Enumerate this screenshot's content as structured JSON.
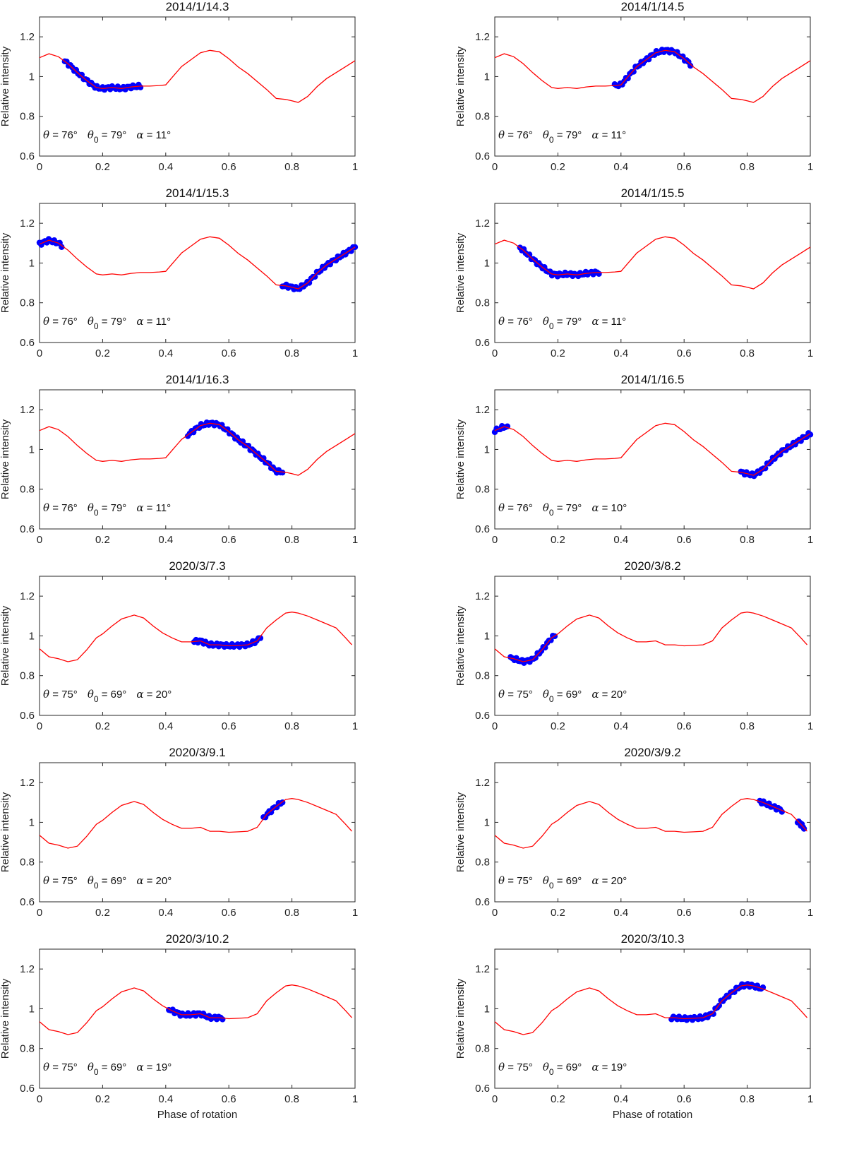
{
  "figure": {
    "xlabel": "Phase of rotation",
    "ylabel": "Relative intensity",
    "model_color": "#ff0000",
    "obs_color": "#0000ff"
  },
  "chart_data": [
    {
      "type": "line",
      "title": "2014/1/14.3",
      "xlim": [
        0,
        1
      ],
      "ylim": [
        0.6,
        1.3
      ],
      "xticks": [
        "0",
        "0.2",
        "0.4",
        "0.6",
        "0.8",
        "1"
      ],
      "yticks": [
        "0.6",
        "0.8",
        "1",
        "1.2"
      ],
      "model": "A",
      "obs_ranges": [
        [
          0.08,
          0.32
        ]
      ],
      "annotation": {
        "theta": "76",
        "theta0": "79",
        "alpha": "11"
      }
    },
    {
      "type": "line",
      "title": "2014/1/14.5",
      "xlim": [
        0,
        1
      ],
      "ylim": [
        0.6,
        1.3
      ],
      "xticks": [
        "0",
        "0.2",
        "0.4",
        "0.6",
        "0.8",
        "1"
      ],
      "yticks": [
        "0.6",
        "0.8",
        "1",
        "1.2"
      ],
      "model": "A",
      "obs_ranges": [
        [
          0.38,
          0.62
        ]
      ],
      "annotation": {
        "theta": "76",
        "theta0": "79",
        "alpha": "11"
      }
    },
    {
      "type": "line",
      "title": "2014/1/15.3",
      "xlim": [
        0,
        1
      ],
      "ylim": [
        0.6,
        1.3
      ],
      "xticks": [
        "0",
        "0.2",
        "0.4",
        "0.6",
        "0.8",
        "1"
      ],
      "yticks": [
        "0.6",
        "0.8",
        "1",
        "1.2"
      ],
      "model": "A",
      "obs_ranges": [
        [
          0.0,
          0.07
        ],
        [
          0.77,
          1.0
        ]
      ],
      "annotation": {
        "theta": "76",
        "theta0": "79",
        "alpha": "11"
      }
    },
    {
      "type": "line",
      "title": "2014/1/15.5",
      "xlim": [
        0,
        1
      ],
      "ylim": [
        0.6,
        1.3
      ],
      "xticks": [
        "0",
        "0.2",
        "0.4",
        "0.6",
        "0.8",
        "1"
      ],
      "yticks": [
        "0.6",
        "0.8",
        "1",
        "1.2"
      ],
      "model": "A",
      "obs_ranges": [
        [
          0.08,
          0.33
        ]
      ],
      "annotation": {
        "theta": "76",
        "theta0": "79",
        "alpha": "11"
      }
    },
    {
      "type": "line",
      "title": "2014/1/16.3",
      "xlim": [
        0,
        1
      ],
      "ylim": [
        0.6,
        1.3
      ],
      "xticks": [
        "0",
        "0.2",
        "0.4",
        "0.6",
        "0.8",
        "1"
      ],
      "yticks": [
        "0.6",
        "0.8",
        "1",
        "1.2"
      ],
      "model": "A",
      "obs_ranges": [
        [
          0.47,
          0.77
        ]
      ],
      "annotation": {
        "theta": "76",
        "theta0": "79",
        "alpha": "11"
      }
    },
    {
      "type": "line",
      "title": "2014/1/16.5",
      "xlim": [
        0,
        1
      ],
      "ylim": [
        0.6,
        1.3
      ],
      "xticks": [
        "0",
        "0.2",
        "0.4",
        "0.6",
        "0.8",
        "1"
      ],
      "yticks": [
        "0.6",
        "0.8",
        "1",
        "1.2"
      ],
      "model": "A",
      "obs_ranges": [
        [
          0.0,
          0.04
        ],
        [
          0.78,
          1.0
        ]
      ],
      "annotation": {
        "theta": "76",
        "theta0": "79",
        "alpha": "10"
      }
    },
    {
      "type": "line",
      "title": "2020/3/7.3",
      "xlim": [
        0,
        1
      ],
      "ylim": [
        0.6,
        1.3
      ],
      "xticks": [
        "0",
        "0.2",
        "0.4",
        "0.6",
        "0.8",
        "1"
      ],
      "yticks": [
        "0.6",
        "0.8",
        "1",
        "1.2"
      ],
      "model": "B",
      "obs_ranges": [
        [
          0.49,
          0.7
        ]
      ],
      "annotation": {
        "theta": "75",
        "theta0": "69",
        "alpha": "20"
      }
    },
    {
      "type": "line",
      "title": "2020/3/8.2",
      "xlim": [
        0,
        1
      ],
      "ylim": [
        0.6,
        1.3
      ],
      "xticks": [
        "0",
        "0.2",
        "0.4",
        "0.6",
        "0.8",
        "1"
      ],
      "yticks": [
        "0.6",
        "0.8",
        "1",
        "1.2"
      ],
      "model": "B",
      "obs_ranges": [
        [
          0.05,
          0.19
        ]
      ],
      "annotation": {
        "theta": "75",
        "theta0": "69",
        "alpha": "20"
      }
    },
    {
      "type": "line",
      "title": "2020/3/9.1",
      "xlim": [
        0,
        1
      ],
      "ylim": [
        0.6,
        1.3
      ],
      "xticks": [
        "0",
        "0.2",
        "0.4",
        "0.6",
        "0.8",
        "1"
      ],
      "yticks": [
        "0.6",
        "0.8",
        "1",
        "1.2"
      ],
      "model": "B",
      "obs_ranges": [
        [
          0.71,
          0.77
        ]
      ],
      "annotation": {
        "theta": "75",
        "theta0": "69",
        "alpha": "20"
      }
    },
    {
      "type": "line",
      "title": "2020/3/9.2",
      "xlim": [
        0,
        1
      ],
      "ylim": [
        0.6,
        1.3
      ],
      "xticks": [
        "0",
        "0.2",
        "0.4",
        "0.6",
        "0.8",
        "1"
      ],
      "yticks": [
        "0.6",
        "0.8",
        "1",
        "1.2"
      ],
      "model": "B",
      "obs_ranges": [
        [
          0.84,
          0.91
        ],
        [
          0.96,
          0.98
        ]
      ],
      "annotation": {
        "theta": "75",
        "theta0": "69",
        "alpha": "20"
      }
    },
    {
      "type": "line",
      "title": "2020/3/10.2",
      "xlim": [
        0,
        1
      ],
      "ylim": [
        0.6,
        1.3
      ],
      "xticks": [
        "0",
        "0.2",
        "0.4",
        "0.6",
        "0.8",
        "1"
      ],
      "yticks": [
        "0.6",
        "0.8",
        "1",
        "1.2"
      ],
      "model": "B",
      "obs_ranges": [
        [
          0.41,
          0.58
        ]
      ],
      "annotation": {
        "theta": "75",
        "theta0": "69",
        "alpha": "19"
      }
    },
    {
      "type": "line",
      "title": "2020/3/10.3",
      "xlim": [
        0,
        1
      ],
      "ylim": [
        0.6,
        1.3
      ],
      "xticks": [
        "0",
        "0.2",
        "0.4",
        "0.6",
        "0.8",
        "1"
      ],
      "yticks": [
        "0.6",
        "0.8",
        "1",
        "1.2"
      ],
      "model": "B",
      "obs_ranges": [
        [
          0.56,
          0.85
        ]
      ],
      "annotation": {
        "theta": "75",
        "theta0": "69",
        "alpha": "19"
      }
    }
  ],
  "models": {
    "A": {
      "x": [
        0,
        0.03,
        0.06,
        0.09,
        0.12,
        0.15,
        0.18,
        0.2,
        0.23,
        0.26,
        0.29,
        0.32,
        0.35,
        0.38,
        0.4,
        0.42,
        0.45,
        0.48,
        0.51,
        0.54,
        0.57,
        0.6,
        0.63,
        0.66,
        0.69,
        0.72,
        0.75,
        0.78,
        0.8,
        0.82,
        0.85,
        0.88,
        0.91,
        0.94,
        0.97,
        1.0
      ],
      "y": [
        1.095,
        1.115,
        1.1,
        1.065,
        1.02,
        0.98,
        0.945,
        0.94,
        0.945,
        0.94,
        0.948,
        0.952,
        0.952,
        0.955,
        0.958,
        0.995,
        1.05,
        1.085,
        1.12,
        1.132,
        1.125,
        1.09,
        1.048,
        1.015,
        0.975,
        0.935,
        0.89,
        0.885,
        0.878,
        0.87,
        0.9,
        0.95,
        0.99,
        1.02,
        1.05,
        1.08
      ]
    },
    "B": {
      "x": [
        0,
        0.03,
        0.06,
        0.09,
        0.12,
        0.15,
        0.18,
        0.2,
        0.23,
        0.26,
        0.3,
        0.33,
        0.36,
        0.39,
        0.42,
        0.45,
        0.48,
        0.51,
        0.54,
        0.57,
        0.6,
        0.63,
        0.66,
        0.69,
        0.72,
        0.75,
        0.78,
        0.8,
        0.82,
        0.85,
        0.88,
        0.91,
        0.94,
        0.97,
        0.99
      ],
      "y": [
        0.935,
        0.895,
        0.885,
        0.87,
        0.88,
        0.93,
        0.99,
        1.01,
        1.05,
        1.085,
        1.105,
        1.09,
        1.05,
        1.015,
        0.99,
        0.97,
        0.97,
        0.975,
        0.955,
        0.955,
        0.95,
        0.952,
        0.955,
        0.975,
        1.04,
        1.08,
        1.115,
        1.12,
        1.115,
        1.1,
        1.08,
        1.06,
        1.04,
        0.99,
        0.955
      ]
    }
  }
}
